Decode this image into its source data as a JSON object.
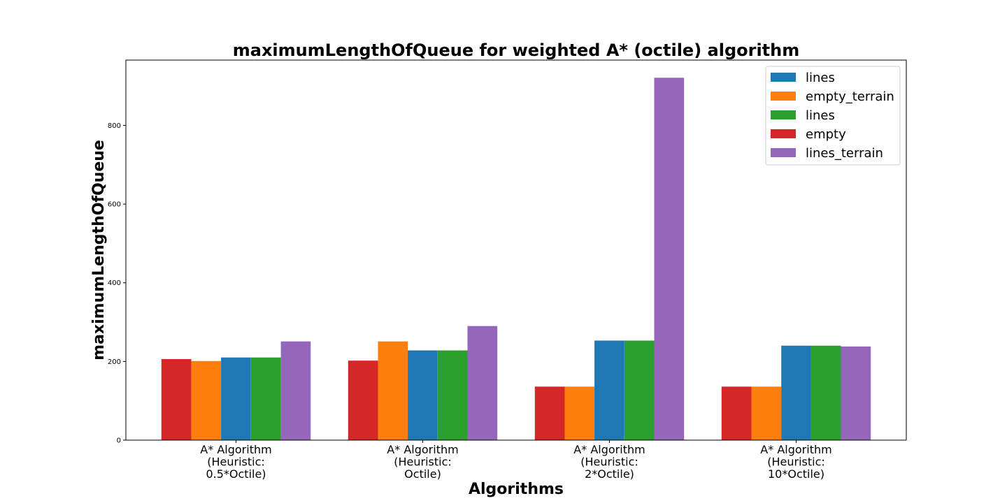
{
  "chart_data": {
    "type": "bar",
    "title": "maximumLengthOfQueue for weighted A* (octile) algorithm",
    "xlabel": "Algorithms",
    "ylabel": "maximumLengthOfQueue",
    "ylim": [
      0,
      966
    ],
    "yticks": [
      0,
      200,
      400,
      600,
      800
    ],
    "grid": false,
    "legend_position": "top-right",
    "categories": [
      [
        "A* Algorithm",
        "(Heuristic:",
        "0.5*Octile)"
      ],
      [
        "A* Algorithm",
        "(Heuristic:",
        "Octile)"
      ],
      [
        "A* Algorithm",
        "(Heuristic:",
        "2*Octile)"
      ],
      [
        "A* Algorithm",
        "(Heuristic:",
        "10*Octile)"
      ]
    ],
    "series": [
      {
        "name": "empty",
        "color": "#d62728",
        "values": [
          206,
          202,
          136,
          136
        ]
      },
      {
        "name": "empty_terrain",
        "color": "#ff7f0e",
        "values": [
          201,
          251,
          136,
          136
        ]
      },
      {
        "name": "lines",
        "color": "#1f77b4",
        "values": [
          210,
          228,
          253,
          240
        ]
      },
      {
        "name": "lines",
        "color": "#2ca02c",
        "values": [
          210,
          228,
          253,
          240
        ]
      },
      {
        "name": "lines_terrain",
        "color": "#9467bd",
        "values": [
          251,
          290,
          921,
          238
        ]
      }
    ],
    "legend_order": [
      2,
      1,
      3,
      0,
      4
    ]
  }
}
